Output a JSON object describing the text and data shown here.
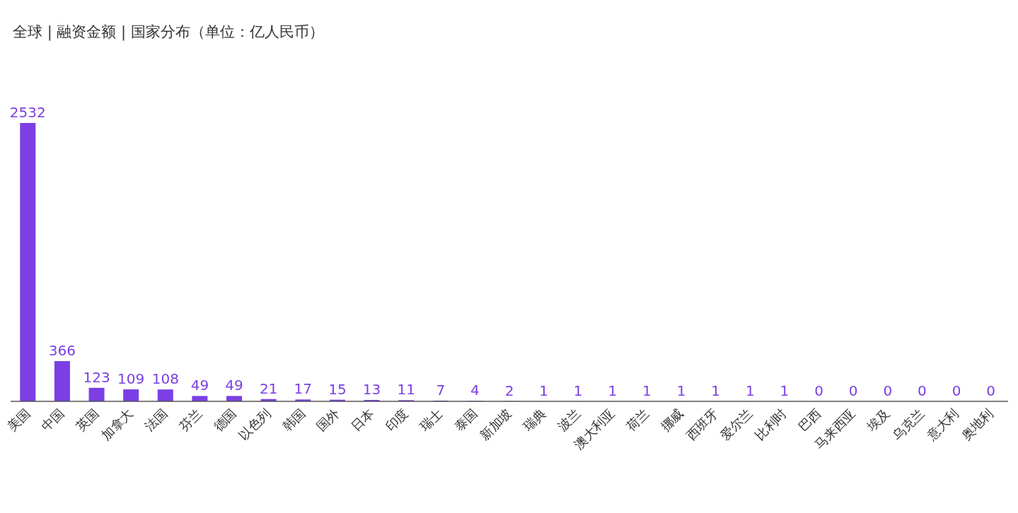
{
  "chart_data": {
    "type": "bar",
    "title": "全球 | 融资金额 | 国家分布（单位：亿人民币）",
    "categories": [
      "美国",
      "中国",
      "英国",
      "加拿大",
      "法国",
      "芬兰",
      "德国",
      "以色列",
      "韩国",
      "国外",
      "日本",
      "印度",
      "瑞士",
      "泰国",
      "新加坡",
      "瑞典",
      "波兰",
      "澳大利亚",
      "荷兰",
      "挪威",
      "西班牙",
      "爱尔兰",
      "比利时",
      "巴西",
      "马来西亚",
      "埃及",
      "乌克兰",
      "意大利",
      "奥地利"
    ],
    "values": [
      2532,
      366,
      123,
      109,
      108,
      49,
      49,
      21,
      17,
      15,
      13,
      11,
      7,
      4,
      2,
      1,
      1,
      1,
      1,
      1,
      1,
      1,
      1,
      0,
      0,
      0,
      0,
      0,
      0
    ],
    "color": "#7b3fe4",
    "data_labels": true
  }
}
